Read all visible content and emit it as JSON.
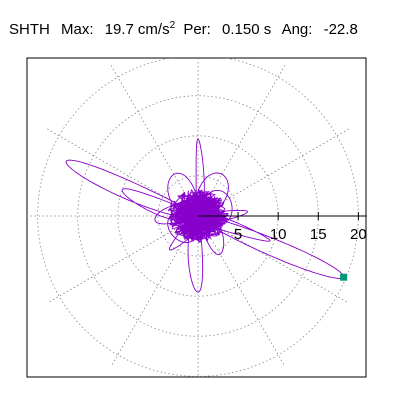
{
  "header": {
    "channel": "SHTH",
    "max_label": "Max:",
    "max_value": "19.7",
    "max_unit_base": "cm/s",
    "max_unit_exp": "2",
    "per_label": "Per:",
    "per_value": "0.150 s",
    "ang_label": "Ang:",
    "ang_value": "-22.8"
  },
  "chart_data": {
    "type": "polar-orbit",
    "radial_ticks": [
      5,
      10,
      15,
      20
    ],
    "radial_tick_labels": [
      "5",
      "10",
      "15",
      "20"
    ],
    "r_max": 21.7,
    "grid": true,
    "angular_grid_step_deg": 30,
    "orbit_color": "#8800cc",
    "peak_marker_color": "#009977",
    "peak": {
      "magnitude": 19.7,
      "angle_deg": -22.8
    },
    "orbit_lobes": [
      {
        "magnitude": 19.7,
        "angle_deg": -22.8,
        "width": 1.2
      },
      {
        "magnitude": 17.8,
        "angle_deg": 157.5,
        "width": 1.5
      },
      {
        "magnitude": 10.0,
        "angle_deg": 161,
        "width": 2.0
      },
      {
        "magnitude": 9.5,
        "angle_deg": -19,
        "width": 2.2
      },
      {
        "magnitude": 9.6,
        "angle_deg": 90,
        "width": 1.2
      },
      {
        "magnitude": 9.5,
        "angle_deg": -90,
        "width": 1.3
      },
      {
        "magnitude": 6.0,
        "angle_deg": 60,
        "width": 2.0
      },
      {
        "magnitude": 6.0,
        "angle_deg": 120,
        "width": 2.0
      },
      {
        "magnitude": 5.5,
        "angle_deg": -60,
        "width": 2.0
      },
      {
        "magnitude": 5.5,
        "angle_deg": -130,
        "width": 2.0
      },
      {
        "magnitude": 6.2,
        "angle_deg": 5,
        "width": 1.6
      },
      {
        "magnitude": 5.4,
        "angle_deg": 185,
        "width": 1.8
      },
      {
        "magnitude": 4.5,
        "angle_deg": 30,
        "width": 2.5
      },
      {
        "magnitude": 4.0,
        "angle_deg": -150,
        "width": 2.4
      }
    ]
  }
}
